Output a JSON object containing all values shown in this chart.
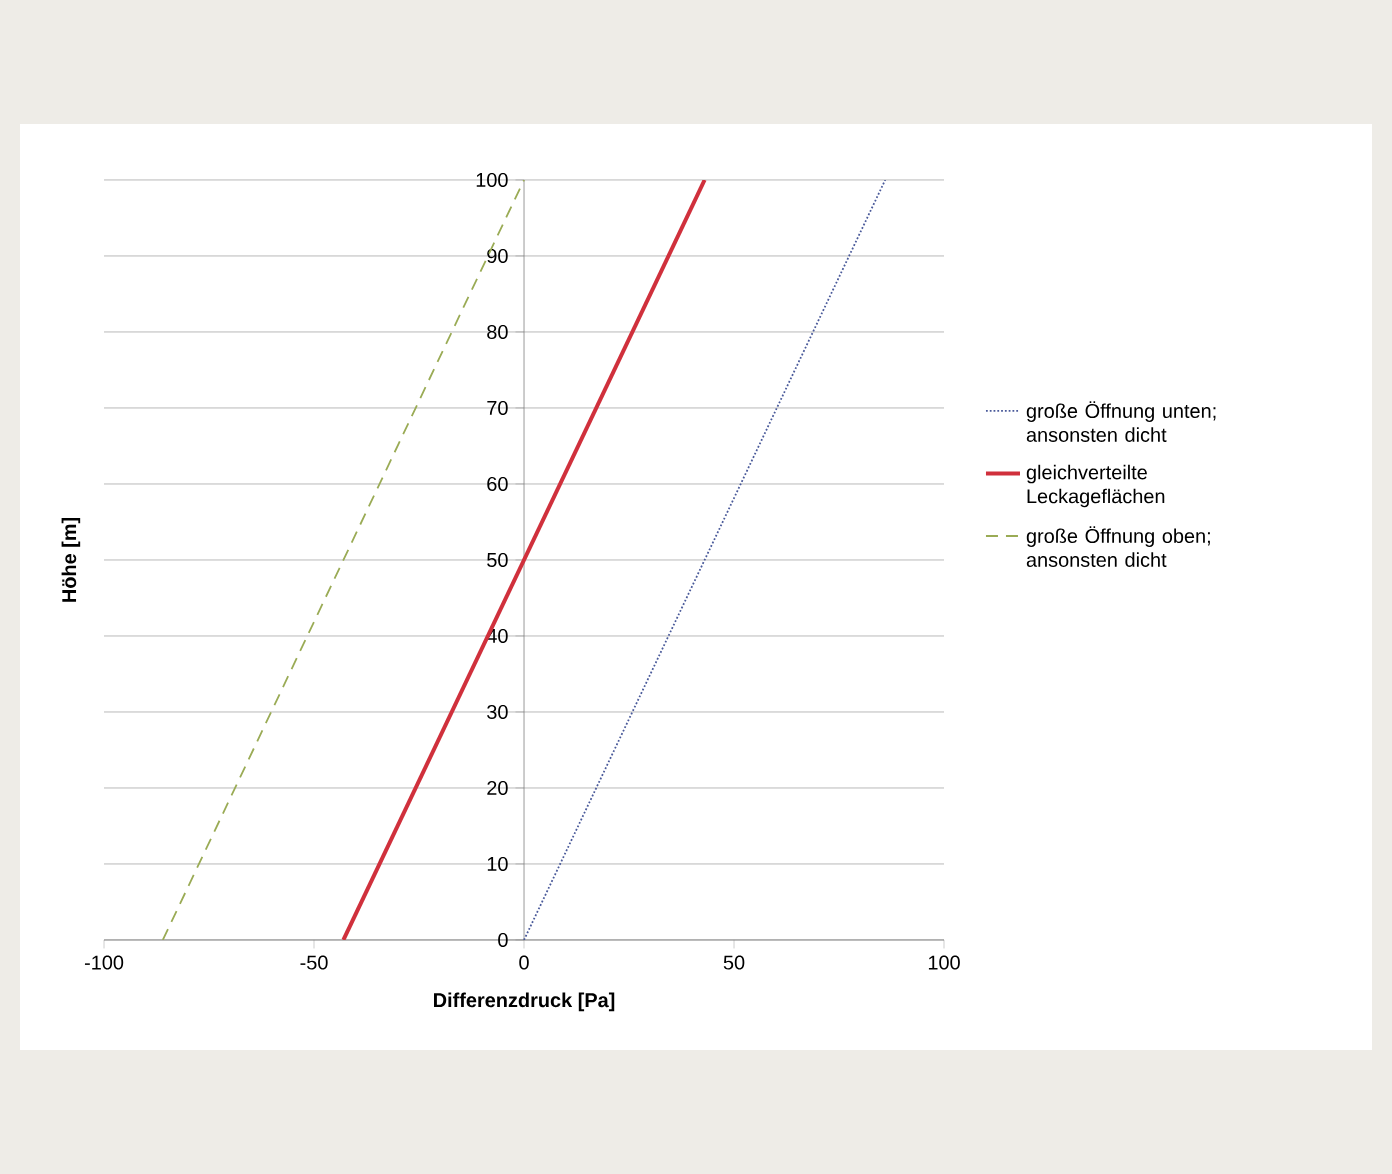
{
  "chart_data": {
    "type": "line",
    "xlabel": "Differenzdruck [Pa]",
    "ylabel": "Höhe [m]",
    "xlim": [
      -100,
      100
    ],
    "xticks": [
      -100,
      -50,
      0,
      50,
      100
    ],
    "ylim": [
      0,
      100
    ],
    "yticks": [
      0,
      10,
      20,
      30,
      40,
      50,
      60,
      70,
      80,
      90,
      100
    ],
    "grid": "y",
    "legend": "right",
    "marker": "none",
    "series": [
      {
        "name": "große Öffnung unten; ansonsten dicht",
        "color": "#4a5a9a",
        "line_style": "dotted",
        "x": [
          0,
          86
        ],
        "values": [
          0,
          100
        ]
      },
      {
        "name": "gleichverteilte Leckageflächen",
        "color": "#d0303c",
        "line_style": "solid",
        "x": [
          -43,
          43
        ],
        "values": [
          0,
          100
        ]
      },
      {
        "name": "große Öffnung oben; ansonsten dicht",
        "color": "#9aab55",
        "line_style": "dashed",
        "x": [
          -86,
          0
        ],
        "values": [
          0,
          100
        ]
      }
    ]
  }
}
